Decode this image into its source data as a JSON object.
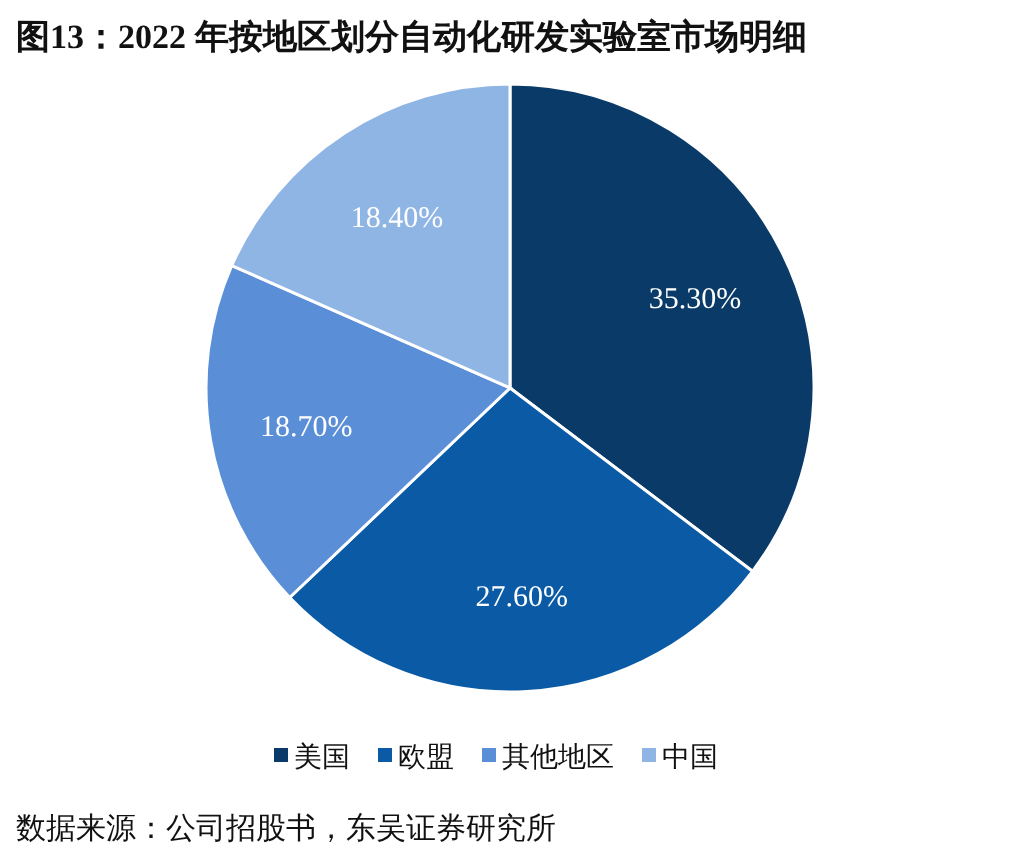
{
  "chart_data": {
    "type": "pie",
    "title": "图13：2022 年按地区划分自动化研发实验室市场明细",
    "categories": [
      "美国",
      "欧盟",
      "其他地区",
      "中国"
    ],
    "values": [
      35.3,
      27.6,
      18.7,
      18.4
    ],
    "value_labels": [
      "35.30%",
      "27.60%",
      "18.70%",
      "18.40%"
    ],
    "colors": [
      "#0a3a68",
      "#0b5aa6",
      "#5a8fd8",
      "#8fb5e4"
    ],
    "legend": "bottom",
    "annotations": [
      "数据来源：公司招股书，东吴证券研究所"
    ]
  }
}
